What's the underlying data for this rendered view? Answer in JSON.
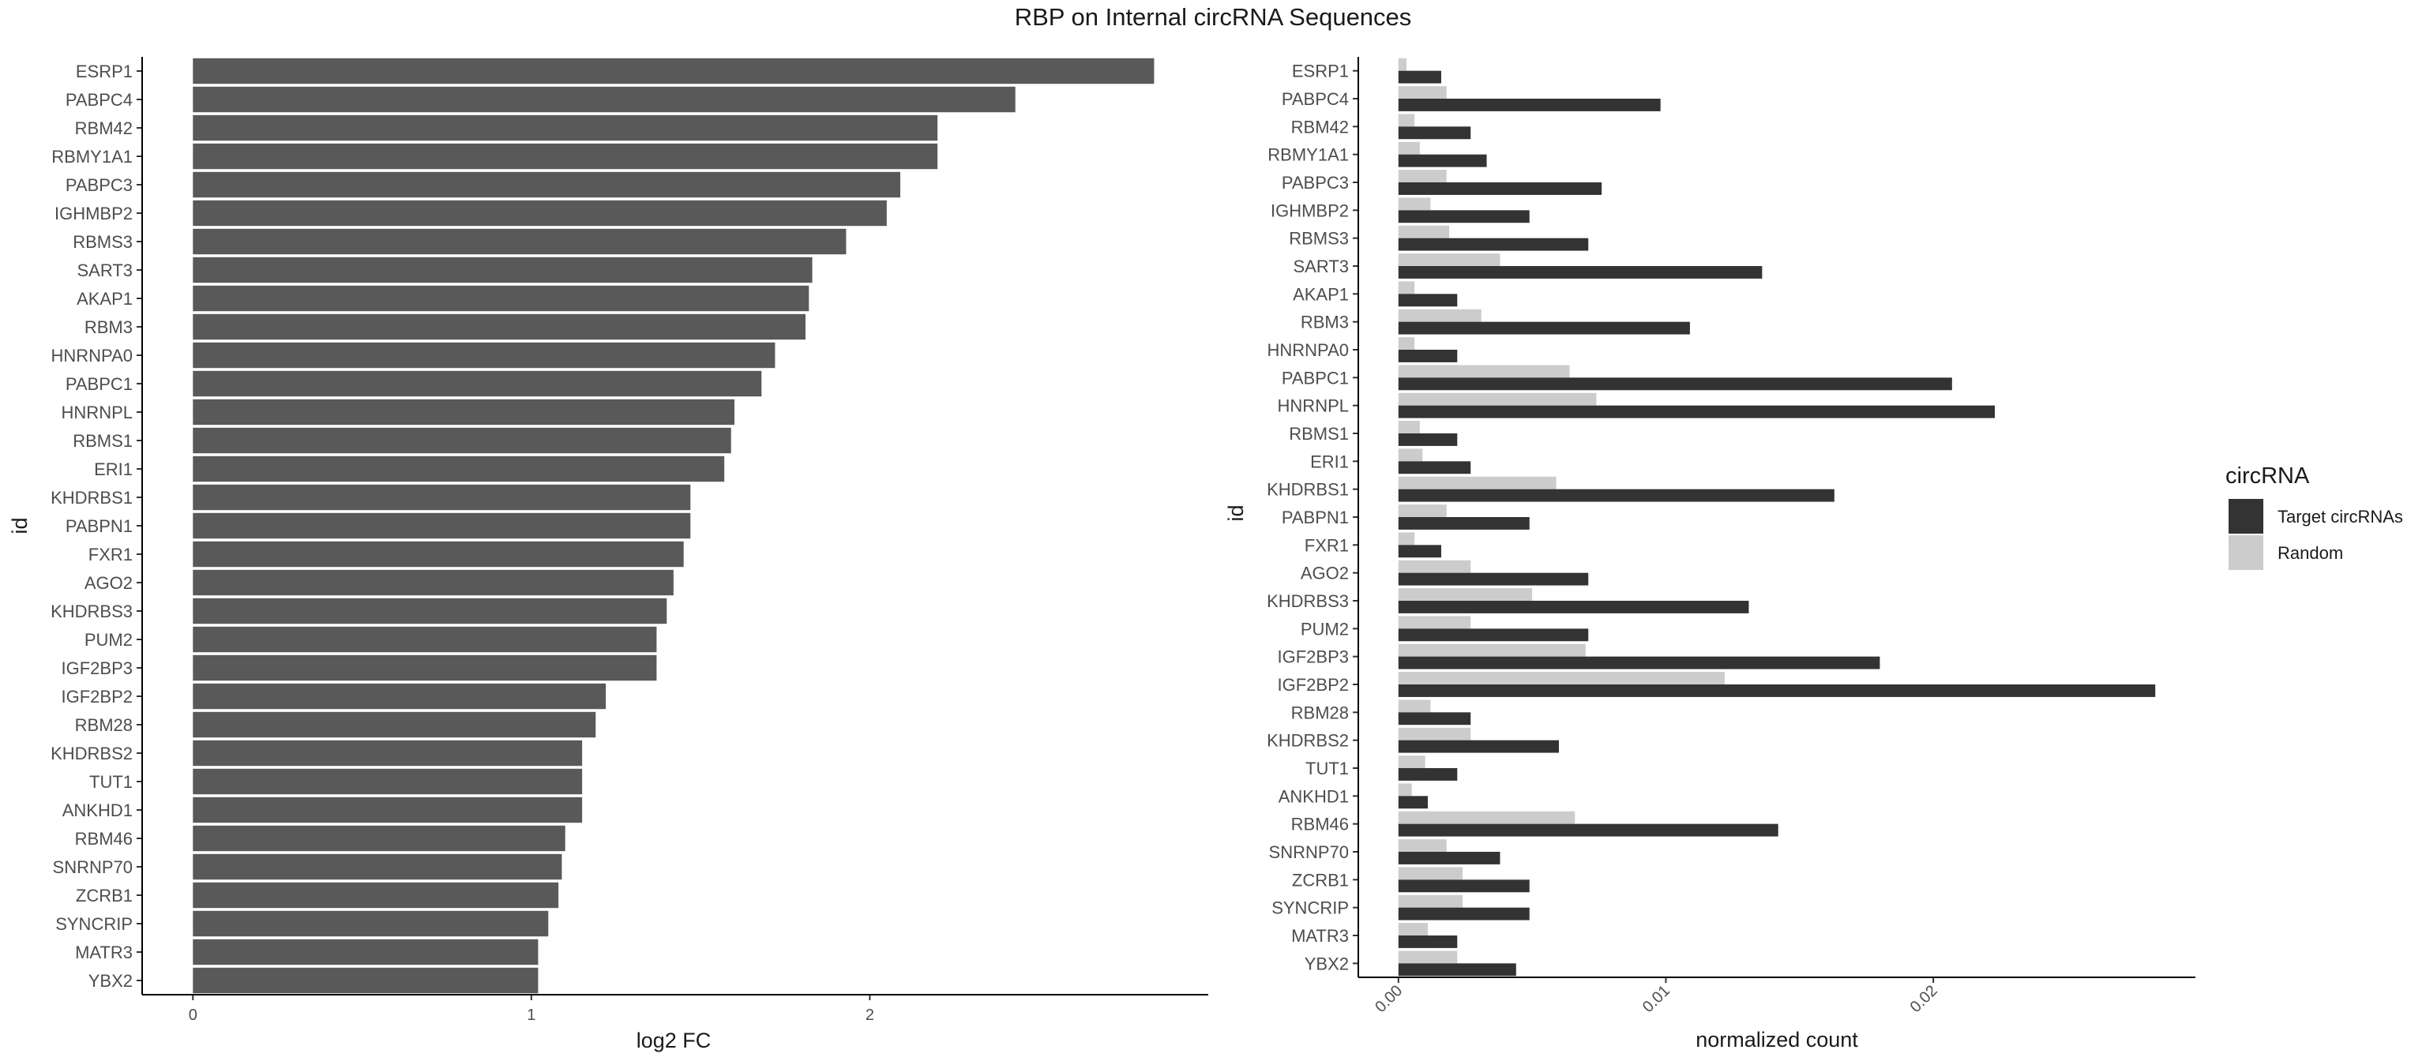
{
  "title": "RBP on Internal circRNA Sequences",
  "colors": {
    "left_bar": "#595959",
    "target": "#333333",
    "random": "#cccccc",
    "axis": "#000000"
  },
  "chart_data": [
    {
      "type": "bar",
      "orientation": "horizontal",
      "xlabel": "log2 FC",
      "ylabel": "id",
      "xlim": [
        -0.15,
        3.0
      ],
      "x_ticks": [
        "0",
        "1",
        "2"
      ],
      "grid": false,
      "categories": [
        "ESRP1",
        "PABPC4",
        "RBM42",
        "RBMY1A1",
        "PABPC3",
        "IGHMBP2",
        "RBMS3",
        "SART3",
        "AKAP1",
        "RBM3",
        "HNRNPA0",
        "PABPC1",
        "HNRNPL",
        "RBMS1",
        "ERI1",
        "KHDRBS1",
        "PABPN1",
        "FXR1",
        "AGO2",
        "KHDRBS3",
        "PUM2",
        "IGF2BP3",
        "IGF2BP2",
        "RBM28",
        "KHDRBS2",
        "TUT1",
        "ANKHD1",
        "RBM46",
        "SNRNP70",
        "ZCRB1",
        "SYNCRIP",
        "MATR3",
        "YBX2"
      ],
      "values": [
        2.84,
        2.43,
        2.2,
        2.2,
        2.09,
        2.05,
        1.93,
        1.83,
        1.82,
        1.81,
        1.72,
        1.68,
        1.6,
        1.59,
        1.57,
        1.47,
        1.47,
        1.45,
        1.42,
        1.4,
        1.37,
        1.37,
        1.22,
        1.19,
        1.15,
        1.15,
        1.15,
        1.1,
        1.09,
        1.08,
        1.05,
        1.02,
        1.02
      ]
    },
    {
      "type": "bar",
      "orientation": "horizontal",
      "subtype": "grouped",
      "xlabel": "normalized count",
      "ylabel": "id",
      "xlim": [
        -0.0015,
        0.0298
      ],
      "x_ticks": [
        "0.00",
        "0.01",
        "0.02"
      ],
      "grid": false,
      "legend": {
        "title": "circRNA",
        "position": "right"
      },
      "categories": [
        "ESRP1",
        "PABPC4",
        "RBM42",
        "RBMY1A1",
        "PABPC3",
        "IGHMBP2",
        "RBMS3",
        "SART3",
        "AKAP1",
        "RBM3",
        "HNRNPA0",
        "PABPC1",
        "HNRNPL",
        "RBMS1",
        "ERI1",
        "KHDRBS1",
        "PABPN1",
        "FXR1",
        "AGO2",
        "KHDRBS3",
        "PUM2",
        "IGF2BP3",
        "IGF2BP2",
        "RBM28",
        "KHDRBS2",
        "TUT1",
        "ANKHD1",
        "RBM46",
        "SNRNP70",
        "ZCRB1",
        "SYNCRIP",
        "MATR3",
        "YBX2"
      ],
      "series": [
        {
          "name": "Target circRNAs",
          "values": [
            0.0016,
            0.0098,
            0.0027,
            0.0033,
            0.0076,
            0.0049,
            0.0071,
            0.0136,
            0.0022,
            0.0109,
            0.0022,
            0.0207,
            0.0223,
            0.0022,
            0.0027,
            0.0163,
            0.0049,
            0.0016,
            0.0071,
            0.0131,
            0.0071,
            0.018,
            0.0283,
            0.0027,
            0.006,
            0.0022,
            0.0011,
            0.0142,
            0.0038,
            0.0049,
            0.0049,
            0.0022,
            0.0044
          ]
        },
        {
          "name": "Random",
          "values": [
            0.0003,
            0.0018,
            0.0006,
            0.0008,
            0.0018,
            0.0012,
            0.0019,
            0.0038,
            0.0006,
            0.0031,
            0.0006,
            0.0064,
            0.0074,
            0.0008,
            0.0009,
            0.0059,
            0.0018,
            0.0006,
            0.0027,
            0.005,
            0.0027,
            0.007,
            0.0122,
            0.0012,
            0.0027,
            0.001,
            0.0005,
            0.0066,
            0.0018,
            0.0024,
            0.0024,
            0.0011,
            0.0022
          ]
        }
      ]
    }
  ]
}
